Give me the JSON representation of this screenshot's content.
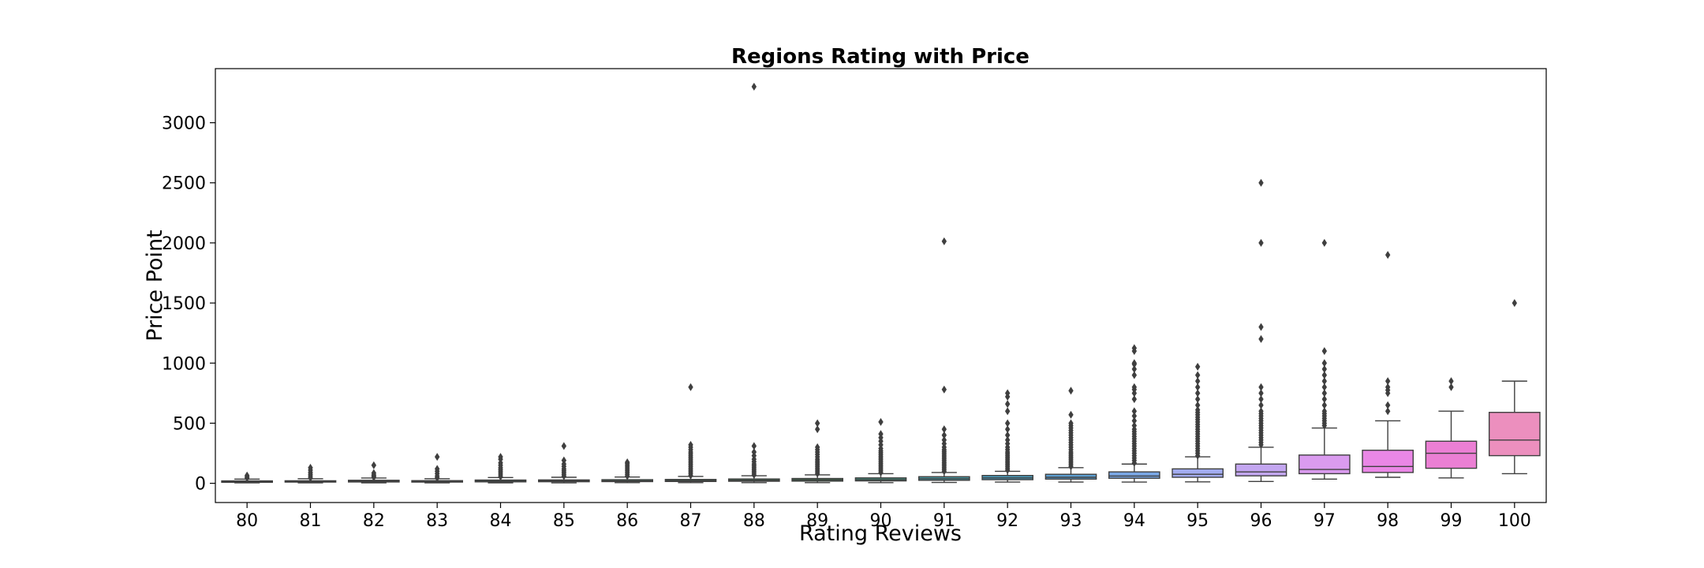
{
  "chart_data": {
    "type": "box",
    "title": "Regions Rating with Price",
    "xlabel": "Rating Reviews",
    "ylabel": "Price Point",
    "ylim": [
      -160,
      3450
    ],
    "yticks": [
      0,
      500,
      1000,
      1500,
      2000,
      2500,
      3000
    ],
    "grid": false,
    "categories": [
      "80",
      "81",
      "82",
      "83",
      "84",
      "85",
      "86",
      "87",
      "88",
      "89",
      "90",
      "91",
      "92",
      "93",
      "94",
      "95",
      "96",
      "97",
      "98",
      "99",
      "100"
    ],
    "colors": [
      "#3b8e93",
      "#3a8d8c",
      "#3a8c87",
      "#39887f",
      "#3a8778",
      "#3c8672",
      "#3e846a",
      "#3f8462",
      "#40845c",
      "#418456",
      "#45907e",
      "#4796a0",
      "#4a9ab9",
      "#5ea0d3",
      "#7aa7e5",
      "#a3acf0",
      "#c3a6f0",
      "#da9bef",
      "#ea87e6",
      "#eb7fd4",
      "#ec8fbe"
    ],
    "boxes": [
      {
        "q1": 8,
        "median": 14,
        "q3": 20,
        "whisker_low": 4,
        "whisker_high": 35,
        "outliers": [
          45,
          55,
          65
        ]
      },
      {
        "q1": 10,
        "median": 15,
        "q3": 21,
        "whisker_low": 4,
        "whisker_high": 38,
        "outliers": [
          45,
          60,
          75,
          90,
          110,
          130
        ]
      },
      {
        "q1": 11,
        "median": 18,
        "q3": 25,
        "whisker_low": 4,
        "whisker_high": 44,
        "outliers": [
          50,
          60,
          70,
          85,
          150
        ]
      },
      {
        "q1": 10,
        "median": 15,
        "q3": 22,
        "whisker_low": 4,
        "whisker_high": 38,
        "outliers": [
          45,
          60,
          80,
          100,
          120,
          220
        ]
      },
      {
        "q1": 12,
        "median": 18,
        "q3": 27,
        "whisker_low": 4,
        "whisker_high": 48,
        "outliers": [
          55,
          70,
          85,
          100,
          115,
          130,
          150,
          170,
          200,
          220
        ]
      },
      {
        "q1": 13,
        "median": 19,
        "q3": 28,
        "whisker_low": 4,
        "whisker_high": 50,
        "outliers": [
          60,
          75,
          90,
          105,
          120,
          140,
          160,
          190,
          310
        ]
      },
      {
        "q1": 14,
        "median": 20,
        "q3": 30,
        "whisker_low": 5,
        "whisker_high": 52,
        "outliers": [
          60,
          75,
          90,
          105,
          120,
          135,
          150,
          165,
          175
        ]
      },
      {
        "q1": 15,
        "median": 22,
        "q3": 32,
        "whisker_low": 5,
        "whisker_high": 57,
        "outliers": [
          65,
          80,
          95,
          110,
          125,
          140,
          155,
          170,
          185,
          200,
          215,
          230,
          245,
          260,
          280,
          300,
          320,
          800
        ]
      },
      {
        "q1": 17,
        "median": 25,
        "q3": 36,
        "whisker_low": 5,
        "whisker_high": 63,
        "outliers": [
          70,
          85,
          100,
          115,
          130,
          145,
          160,
          180,
          200,
          230,
          260,
          310,
          3300
        ]
      },
      {
        "q1": 18,
        "median": 28,
        "q3": 40,
        "whisker_low": 5,
        "whisker_high": 70,
        "outliers": [
          80,
          95,
          110,
          125,
          140,
          155,
          170,
          185,
          200,
          220,
          240,
          260,
          280,
          300,
          450,
          500
        ]
      },
      {
        "q1": 20,
        "median": 30,
        "q3": 45,
        "whisker_low": 5,
        "whisker_high": 80,
        "outliers": [
          90,
          105,
          120,
          135,
          150,
          165,
          180,
          195,
          210,
          225,
          240,
          255,
          270,
          290,
          320,
          350,
          380,
          410,
          510
        ]
      },
      {
        "q1": 25,
        "median": 38,
        "q3": 55,
        "whisker_low": 7,
        "whisker_high": 90,
        "outliers": [
          100,
          115,
          130,
          145,
          160,
          175,
          190,
          205,
          220,
          235,
          250,
          265,
          280,
          300,
          330,
          360,
          400,
          450,
          780,
          2013
        ]
      },
      {
        "q1": 30,
        "median": 45,
        "q3": 65,
        "whisker_low": 10,
        "whisker_high": 100,
        "outliers": [
          110,
          125,
          140,
          155,
          170,
          185,
          200,
          215,
          230,
          245,
          260,
          280,
          300,
          330,
          360,
          400,
          450,
          500,
          600,
          660,
          720,
          750
        ]
      },
      {
        "q1": 35,
        "median": 50,
        "q3": 75,
        "whisker_low": 10,
        "whisker_high": 130,
        "outliers": [
          140,
          155,
          170,
          185,
          200,
          215,
          230,
          245,
          260,
          280,
          300,
          320,
          340,
          360,
          380,
          400,
          420,
          440,
          460,
          480,
          500,
          570,
          770
        ]
      },
      {
        "q1": 42,
        "median": 60,
        "q3": 95,
        "whisker_low": 10,
        "whisker_high": 160,
        "outliers": [
          170,
          190,
          210,
          230,
          250,
          270,
          290,
          310,
          330,
          350,
          370,
          390,
          410,
          430,
          450,
          480,
          520,
          560,
          600,
          700,
          750,
          780,
          800,
          900,
          950,
          990,
          1000,
          1100,
          1125
        ]
      },
      {
        "q1": 50,
        "median": 75,
        "q3": 120,
        "whisker_low": 12,
        "whisker_high": 220,
        "outliers": [
          230,
          250,
          270,
          290,
          310,
          330,
          350,
          370,
          390,
          410,
          430,
          450,
          470,
          490,
          510,
          530,
          550,
          570,
          590,
          610,
          650,
          700,
          750,
          800,
          850,
          900,
          970
        ]
      },
      {
        "q1": 62,
        "median": 95,
        "q3": 160,
        "whisker_low": 15,
        "whisker_high": 300,
        "outliers": [
          320,
          340,
          360,
          380,
          400,
          420,
          440,
          460,
          480,
          500,
          520,
          540,
          560,
          580,
          600,
          650,
          700,
          750,
          800,
          1200,
          1300,
          2000,
          2500
        ]
      },
      {
        "q1": 80,
        "median": 115,
        "q3": 235,
        "whisker_low": 35,
        "whisker_high": 460,
        "outliers": [
          480,
          500,
          520,
          540,
          560,
          580,
          600,
          650,
          700,
          750,
          800,
          850,
          900,
          950,
          1000,
          1100,
          2000
        ]
      },
      {
        "q1": 90,
        "median": 140,
        "q3": 275,
        "whisker_low": 50,
        "whisker_high": 520,
        "outliers": [
          600,
          650,
          750,
          775,
          800,
          850,
          1900
        ]
      },
      {
        "q1": 125,
        "median": 250,
        "q3": 350,
        "whisker_low": 45,
        "whisker_high": 600,
        "outliers": [
          800,
          850
        ]
      },
      {
        "q1": 230,
        "median": 360,
        "q3": 590,
        "whisker_low": 80,
        "whisker_high": 850,
        "outliers": [
          1500
        ]
      }
    ]
  }
}
